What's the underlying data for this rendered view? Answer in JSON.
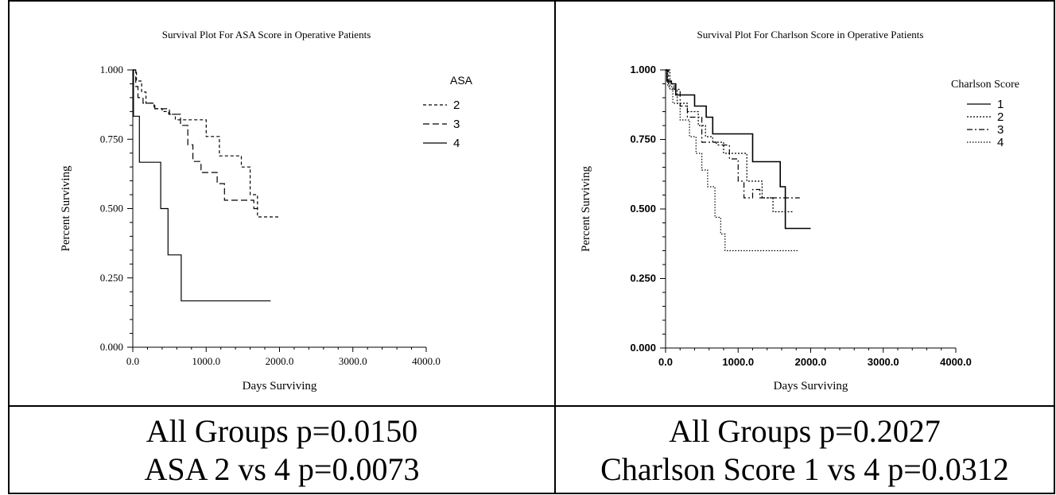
{
  "chart_data": [
    {
      "type": "line",
      "title": "Survival Plot For ASA Score in Operative Patients",
      "xlabel": "Days Surviving",
      "ylabel": "Percent Surviving",
      "xlim": [
        0,
        4000
      ],
      "ylim": [
        0,
        1
      ],
      "x_ticks": [
        "0.0",
        "1000.0",
        "2000.0",
        "3000.0",
        "4000.0"
      ],
      "y_ticks": [
        "0.000",
        "0.250",
        "0.500",
        "0.750",
        "1.000"
      ],
      "legend_title": "ASA",
      "legend_position": "top-right",
      "series": [
        {
          "name": "2",
          "dash": "short-dash",
          "x": [
            0,
            50,
            50,
            120,
            120,
            180,
            180,
            290,
            290,
            400,
            400,
            490,
            490,
            580,
            580,
            1000,
            1000,
            1180,
            1180,
            1480,
            1480,
            1600,
            1600,
            1700,
            1700,
            2000
          ],
          "y": [
            1.0,
            1.0,
            0.96,
            0.96,
            0.92,
            0.92,
            0.88,
            0.88,
            0.86,
            0.86,
            0.85,
            0.85,
            0.84,
            0.84,
            0.82,
            0.82,
            0.76,
            0.76,
            0.69,
            0.69,
            0.65,
            0.65,
            0.55,
            0.55,
            0.47,
            0.47
          ]
        },
        {
          "name": "3",
          "dash": "long-dash",
          "x": [
            0,
            40,
            40,
            70,
            70,
            140,
            140,
            300,
            300,
            500,
            500,
            650,
            650,
            750,
            750,
            820,
            820,
            930,
            930,
            1150,
            1150,
            1250,
            1250,
            1550,
            1550,
            1650,
            1650,
            1720
          ],
          "y": [
            1.0,
            1.0,
            0.94,
            0.94,
            0.9,
            0.9,
            0.88,
            0.88,
            0.86,
            0.86,
            0.84,
            0.84,
            0.8,
            0.8,
            0.73,
            0.73,
            0.67,
            0.67,
            0.63,
            0.63,
            0.59,
            0.59,
            0.53,
            0.53,
            0.53,
            0.53,
            0.5,
            0.5
          ]
        },
        {
          "name": "4",
          "dash": "solid",
          "x": [
            0,
            10,
            10,
            90,
            90,
            380,
            380,
            480,
            480,
            660,
            660,
            1880
          ],
          "y": [
            1.0,
            1.0,
            0.833,
            0.833,
            0.667,
            0.667,
            0.5,
            0.5,
            0.333,
            0.333,
            0.167,
            0.167
          ]
        }
      ]
    },
    {
      "type": "line",
      "title": "Survival Plot For Charlson Score in Operative Patients",
      "xlabel": "Days Surviving",
      "ylabel": "Percent Surviving",
      "xlim": [
        0,
        4000
      ],
      "ylim": [
        0,
        1
      ],
      "x_ticks": [
        "0.0",
        "1000.0",
        "2000.0",
        "3000.0",
        "4000.0"
      ],
      "y_ticks": [
        "0.000",
        "0.250",
        "0.500",
        "0.750",
        "1.000"
      ],
      "legend_title": "Charlson Score",
      "legend_position": "top-right",
      "series": [
        {
          "name": "1",
          "dash": "solid",
          "x": [
            0,
            20,
            20,
            80,
            80,
            140,
            140,
            400,
            400,
            560,
            560,
            650,
            650,
            1200,
            1200,
            1580,
            1580,
            1650,
            1650,
            1750,
            1750,
            2000
          ],
          "y": [
            1.0,
            1.0,
            0.96,
            0.96,
            0.95,
            0.95,
            0.91,
            0.91,
            0.87,
            0.87,
            0.83,
            0.83,
            0.77,
            0.77,
            0.67,
            0.67,
            0.58,
            0.58,
            0.43,
            0.43,
            0.43,
            0.43
          ]
        },
        {
          "name": "2",
          "dash": "dotted",
          "x": [
            0,
            60,
            60,
            160,
            160,
            300,
            300,
            450,
            450,
            550,
            550,
            650,
            650,
            800,
            800,
            930,
            930,
            1120,
            1120,
            1330,
            1330,
            1480,
            1480,
            1680,
            1680,
            1750
          ],
          "y": [
            1.0,
            1.0,
            0.93,
            0.93,
            0.88,
            0.88,
            0.85,
            0.85,
            0.8,
            0.8,
            0.76,
            0.76,
            0.74,
            0.74,
            0.7,
            0.7,
            0.7,
            0.7,
            0.6,
            0.6,
            0.54,
            0.54,
            0.49,
            0.49,
            0.49,
            0.49
          ]
        },
        {
          "name": "3",
          "dash": "dash-dot",
          "x": [
            0,
            40,
            40,
            120,
            120,
            200,
            200,
            300,
            300,
            500,
            500,
            700,
            700,
            880,
            880,
            1000,
            1000,
            1080,
            1080,
            1200,
            1200,
            1300,
            1300,
            1380,
            1380,
            1850
          ],
          "y": [
            1.0,
            1.0,
            0.95,
            0.95,
            0.93,
            0.93,
            0.87,
            0.87,
            0.83,
            0.83,
            0.74,
            0.74,
            0.73,
            0.73,
            0.68,
            0.68,
            0.6,
            0.6,
            0.54,
            0.54,
            0.57,
            0.57,
            0.54,
            0.54,
            0.54,
            0.54
          ]
        },
        {
          "name": "4",
          "dash": "dotted-fine",
          "x": [
            0,
            30,
            30,
            100,
            100,
            200,
            200,
            330,
            330,
            420,
            420,
            500,
            500,
            580,
            580,
            680,
            680,
            760,
            760,
            820,
            820,
            880,
            880,
            1830
          ],
          "y": [
            1.0,
            1.0,
            0.94,
            0.94,
            0.88,
            0.88,
            0.82,
            0.82,
            0.76,
            0.76,
            0.7,
            0.7,
            0.64,
            0.64,
            0.58,
            0.58,
            0.47,
            0.47,
            0.41,
            0.41,
            0.35,
            0.35,
            0.35,
            0.35
          ]
        }
      ]
    }
  ],
  "stats": {
    "left": {
      "line1": "All Groups p=0.0150",
      "line2": "ASA 2 vs 4 p=0.0073"
    },
    "right": {
      "line1": "All Groups p=0.2027",
      "line2": "Charlson Score 1 vs 4 p=0.0312"
    }
  }
}
